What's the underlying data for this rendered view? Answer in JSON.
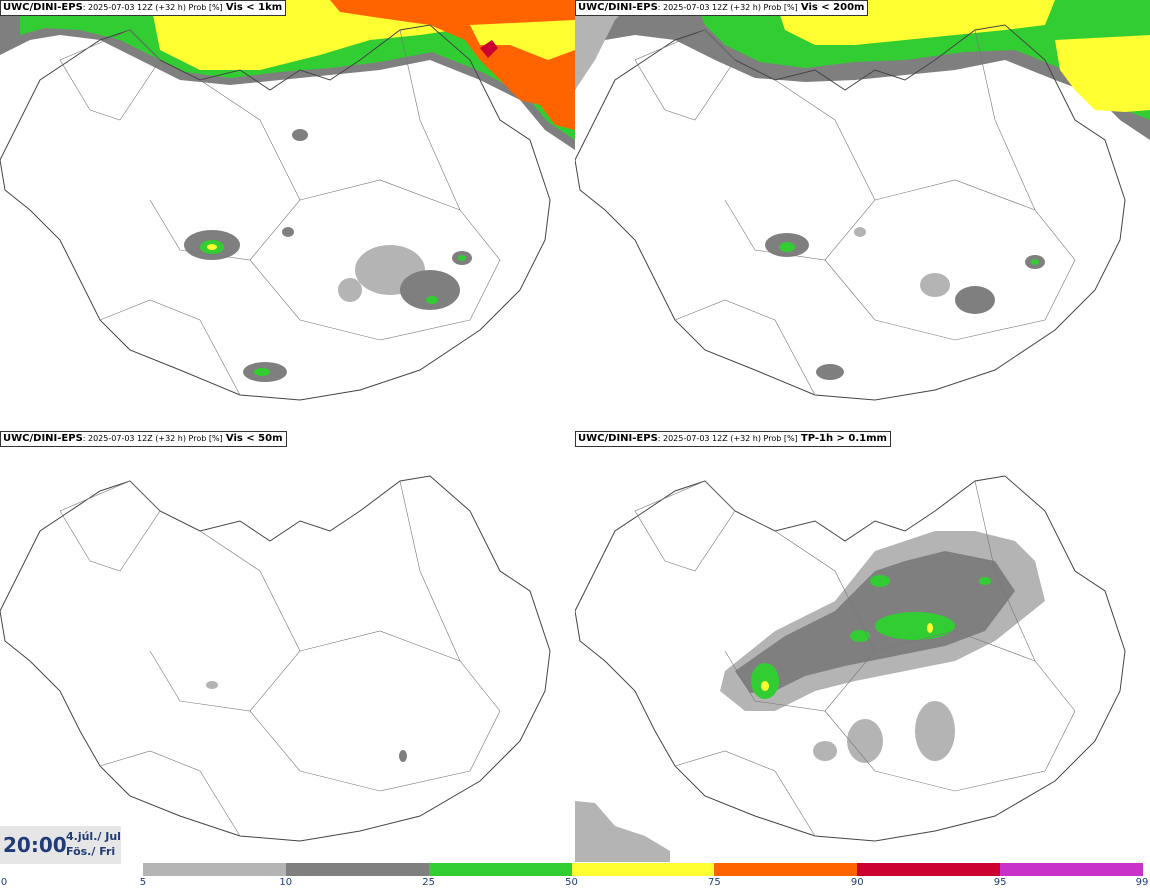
{
  "panels": [
    {
      "model": "UWC/DINI-EPS",
      "run": ": 2025-07-03 12Z (+32 h) Prob [%]",
      "field": "Vis < 1km"
    },
    {
      "model": "UWC/DINI-EPS",
      "run": ": 2025-07-03 12Z (+32 h) Prob [%]",
      "field": "Vis < 200m"
    },
    {
      "model": "UWC/DINI-EPS",
      "run": ": 2025-07-03 12Z (+32 h) Prob [%]",
      "field": "Vis < 50m"
    },
    {
      "model": "UWC/DINI-EPS",
      "run": ": 2025-07-03 12Z (+32 h) Prob [%]",
      "field": "TP-1h > 0.1mm"
    }
  ],
  "valid_time": {
    "time": "20:00",
    "date_line": "4.júl./ Jul",
    "day_line": "Fös./ Fri"
  },
  "legend": {
    "ticks": [
      "0",
      "5",
      "10",
      "25",
      "50",
      "75",
      "90",
      "95",
      "99"
    ],
    "colors": [
      "#ffffff",
      "#b4b4b4",
      "#7f7f7f",
      "#32cd32",
      "#ffff32",
      "#ff6400",
      "#cd0032",
      "#c832c8",
      "#f4b4f4"
    ]
  }
}
